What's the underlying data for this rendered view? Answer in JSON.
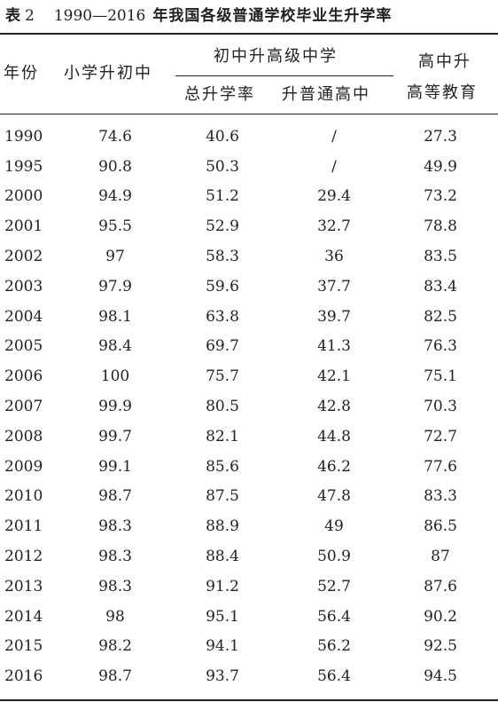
{
  "caption": {
    "label": "表",
    "number": "2",
    "years": "1990—2016",
    "title": "年我国各级普通学校毕业生升学率"
  },
  "headers": {
    "year": "年份",
    "primary_to_junior": "小学升初中",
    "junior_group": "初中升高级中学",
    "junior_total": "总升学率",
    "junior_to_senior": "升普通高中",
    "senior_to_higher_line1": "高中升",
    "senior_to_higher_line2": "高等教育"
  },
  "rows": [
    {
      "year": "1990",
      "primary": "74.6",
      "junior_total": "40.6",
      "junior_senior": "/",
      "senior_higher": "27.3"
    },
    {
      "year": "1995",
      "primary": "90.8",
      "junior_total": "50.3",
      "junior_senior": "/",
      "senior_higher": "49.9"
    },
    {
      "year": "2000",
      "primary": "94.9",
      "junior_total": "51.2",
      "junior_senior": "29.4",
      "senior_higher": "73.2"
    },
    {
      "year": "2001",
      "primary": "95.5",
      "junior_total": "52.9",
      "junior_senior": "32.7",
      "senior_higher": "78.8"
    },
    {
      "year": "2002",
      "primary": "97",
      "junior_total": "58.3",
      "junior_senior": "36",
      "senior_higher": "83.5"
    },
    {
      "year": "2003",
      "primary": "97.9",
      "junior_total": "59.6",
      "junior_senior": "37.7",
      "senior_higher": "83.4"
    },
    {
      "year": "2004",
      "primary": "98.1",
      "junior_total": "63.8",
      "junior_senior": "39.7",
      "senior_higher": "82.5"
    },
    {
      "year": "2005",
      "primary": "98.4",
      "junior_total": "69.7",
      "junior_senior": "41.3",
      "senior_higher": "76.3"
    },
    {
      "year": "2006",
      "primary": "100",
      "junior_total": "75.7",
      "junior_senior": "42.1",
      "senior_higher": "75.1"
    },
    {
      "year": "2007",
      "primary": "99.9",
      "junior_total": "80.5",
      "junior_senior": "42.8",
      "senior_higher": "70.3"
    },
    {
      "year": "2008",
      "primary": "99.7",
      "junior_total": "82.1",
      "junior_senior": "44.8",
      "senior_higher": "72.7"
    },
    {
      "year": "2009",
      "primary": "99.1",
      "junior_total": "85.6",
      "junior_senior": "46.2",
      "senior_higher": "77.6"
    },
    {
      "year": "2010",
      "primary": "98.7",
      "junior_total": "87.5",
      "junior_senior": "47.8",
      "senior_higher": "83.3"
    },
    {
      "year": "2011",
      "primary": "98.3",
      "junior_total": "88.9",
      "junior_senior": "49",
      "senior_higher": "86.5"
    },
    {
      "year": "2012",
      "primary": "98.3",
      "junior_total": "88.4",
      "junior_senior": "50.9",
      "senior_higher": "87"
    },
    {
      "year": "2013",
      "primary": "98.3",
      "junior_total": "91.2",
      "junior_senior": "52.7",
      "senior_higher": "87.6"
    },
    {
      "year": "2014",
      "primary": "98",
      "junior_total": "95.1",
      "junior_senior": "56.4",
      "senior_higher": "90.2"
    },
    {
      "year": "2015",
      "primary": "98.2",
      "junior_total": "94.1",
      "junior_senior": "56.2",
      "senior_higher": "92.5"
    },
    {
      "year": "2016",
      "primary": "98.7",
      "junior_total": "93.7",
      "junior_senior": "56.4",
      "senior_higher": "94.5"
    }
  ]
}
